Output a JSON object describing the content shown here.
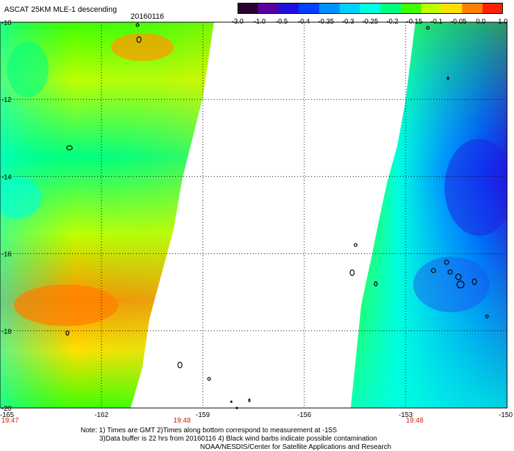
{
  "title": "ASCAT 25KM MLE-1 descending",
  "date": "20160116",
  "colorbar": {
    "labels": [
      "-3.0",
      "-1.0",
      "-0.5",
      "-0.4",
      "-0.35",
      "-0.3",
      "-0.25",
      "-0.2",
      "-0.15",
      "-0.1",
      "-0.05",
      "0.0",
      "1.0"
    ],
    "colors": [
      "#2a0030",
      "#5a00a0",
      "#2010e0",
      "#0040ff",
      "#0090ff",
      "#00d0ff",
      "#00ffe0",
      "#00ff80",
      "#40ff00",
      "#c0ff00",
      "#ffe000",
      "#ff8000",
      "#ff2000"
    ]
  },
  "axes": {
    "lat_labels": [
      "-10",
      "-12",
      "-14",
      "-16",
      "-18",
      "-20"
    ],
    "lon_labels": [
      "-165",
      "-162",
      "-159",
      "-156",
      "-153",
      "-150"
    ],
    "times": [
      "19:47",
      "19:48",
      "19:48"
    ]
  },
  "notes": {
    "line1": "Note: 1) Times are GMT 2)Times along bottom correspond to measurement at -15S",
    "line2": "3)Data buffer is 22 hrs from 20160116 4) Black wind barbs indicate possible contamination",
    "line3": "NOAA/NESDIS/Center for Satellite Applications and Research"
  },
  "colors": {
    "time_label": "#cc2200",
    "grid": "#000000"
  }
}
